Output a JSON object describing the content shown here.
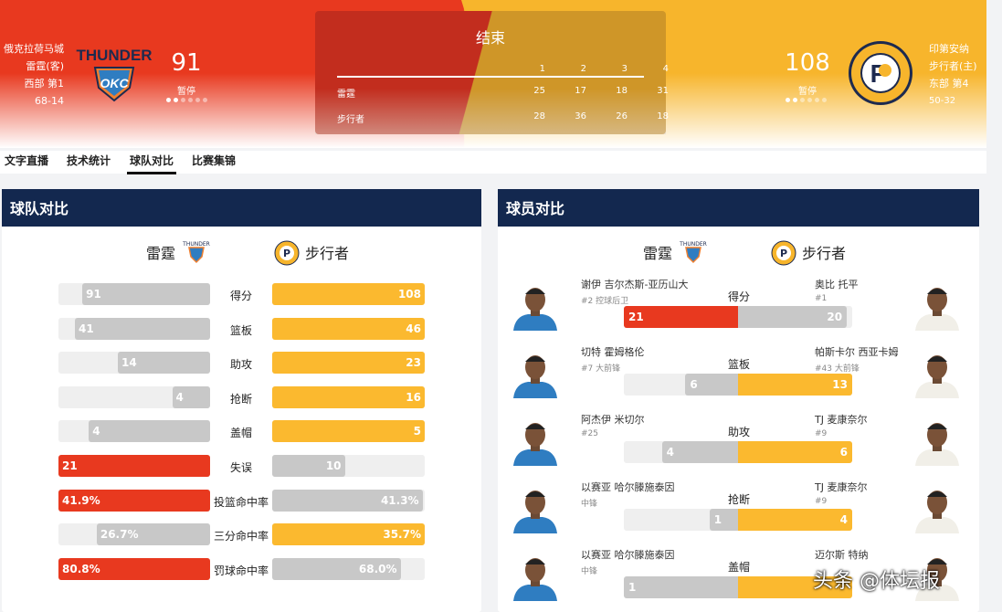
{
  "header": {
    "away": {
      "city": "俄克拉荷马城",
      "name": "雷霆(客)",
      "rank": "西部 第1",
      "record": "68-14",
      "score": "91",
      "status": "暂停",
      "logo": "thunder-logo",
      "color": "#e8391f"
    },
    "home": {
      "city": "印第安纳",
      "name": "步行者(主)",
      "rank": "东部 第4",
      "record": "50-32",
      "score": "108",
      "status": "暂停",
      "logo": "pacers-logo",
      "color": "#f7b52c"
    },
    "board": {
      "title": "结束",
      "quarters": [
        "1",
        "2",
        "3",
        "4"
      ],
      "rows": [
        {
          "team": "雷霆",
          "scores": [
            "25",
            "17",
            "18",
            "31"
          ]
        },
        {
          "team": "步行者",
          "scores": [
            "28",
            "36",
            "26",
            "18"
          ]
        }
      ]
    }
  },
  "tabs": [
    {
      "label": "文字直播"
    },
    {
      "label": "技术统计"
    },
    {
      "label": "球队对比",
      "active": true
    },
    {
      "label": "比赛集锦"
    }
  ],
  "team_compare": {
    "title": "球队对比",
    "away": "雷霆",
    "home": "步行者",
    "stats": [
      {
        "label": "得分",
        "away": "91",
        "home": "108"
      },
      {
        "label": "篮板",
        "away": "41",
        "home": "46"
      },
      {
        "label": "助攻",
        "away": "14",
        "home": "23"
      },
      {
        "label": "抢断",
        "away": "4",
        "home": "16"
      },
      {
        "label": "盖帽",
        "away": "4",
        "home": "5"
      },
      {
        "label": "失误",
        "away": "21",
        "home": "10"
      },
      {
        "label": "投篮命中率",
        "away": "41.9%",
        "home": "41.3%"
      },
      {
        "label": "三分命中率",
        "away": "26.7%",
        "home": "35.7%"
      },
      {
        "label": "罚球命中率",
        "away": "80.8%",
        "home": "68.0%"
      }
    ]
  },
  "player_compare": {
    "title": "球员对比",
    "away": "雷霆",
    "home": "步行者",
    "rows": [
      {
        "label": "得分",
        "away": {
          "name": "谢伊 吉尔杰斯-亚历山大",
          "sub": "#2 控球后卫",
          "value": "21"
        },
        "home": {
          "name": "奥比 托平",
          "sub": "#1",
          "value": "20"
        }
      },
      {
        "label": "篮板",
        "away": {
          "name": "切特 霍姆格伦",
          "sub": "#7 大前锋",
          "value": "6"
        },
        "home": {
          "name": "帕斯卡尔 西亚卡姆",
          "sub": "#43 大前锋",
          "value": "13"
        }
      },
      {
        "label": "助攻",
        "away": {
          "name": "阿杰伊 米切尔",
          "sub": "#25",
          "value": "4"
        },
        "home": {
          "name": "TJ 麦康奈尔",
          "sub": "#9",
          "value": "6"
        }
      },
      {
        "label": "抢断",
        "away": {
          "name": "以赛亚 哈尔滕施泰因",
          "sub": "中锋",
          "value": "1"
        },
        "home": {
          "name": "TJ 麦康奈尔",
          "sub": "#9",
          "value": "4"
        }
      },
      {
        "label": "盖帽",
        "away": {
          "name": "以赛亚 哈尔滕施泰因",
          "sub": "中锋",
          "value": "1"
        },
        "home": {
          "name": "迈尔斯 特纳",
          "sub": "",
          "value": null
        }
      }
    ]
  },
  "colors": {
    "away": "#e8391f",
    "home": "#fbb92f",
    "neutral": "#c8c8c8",
    "track": "#efefef",
    "panel_header": "#13284f"
  },
  "watermark": "头条 @体坛报"
}
